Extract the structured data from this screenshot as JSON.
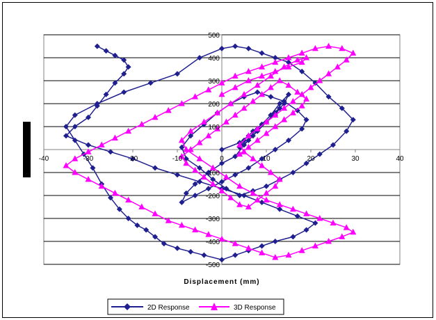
{
  "chart_data": {
    "type": "scatter",
    "xlabel": "Displacement (mm)",
    "ylabel": "",
    "xlim": [
      -40,
      40
    ],
    "ylim": [
      -500,
      500
    ],
    "x_ticks": [
      -40,
      -30,
      -20,
      -10,
      0,
      10,
      20,
      30,
      40
    ],
    "y_ticks": [
      -500,
      -400,
      -300,
      -200,
      -100,
      100,
      200,
      300,
      400,
      500
    ],
    "grid": "horizontal",
    "legend_position": "bottom",
    "series": [
      {
        "name": "2D Response",
        "color": "#1f1f8f",
        "marker": "diamond",
        "x": [
          0,
          4,
          6,
          8,
          10,
          12,
          13,
          11,
          9,
          7,
          5,
          4,
          6,
          8,
          10,
          12,
          14,
          15,
          13,
          11,
          9,
          7,
          5,
          3,
          0,
          -3,
          -6,
          -8,
          -9,
          -6,
          -3,
          0,
          3,
          6,
          9,
          12,
          15,
          18,
          19,
          17,
          14,
          11,
          8,
          5,
          2,
          -1,
          -4,
          -7,
          -9,
          -8,
          -5,
          -2,
          1,
          4,
          7,
          10,
          13,
          16,
          19,
          22,
          25,
          28,
          29.5,
          27,
          24,
          21,
          18,
          15,
          12,
          9,
          6,
          3,
          0,
          -5,
          -10,
          -16,
          -22,
          -28,
          -33,
          -35,
          -33,
          -31,
          -29,
          -27,
          -25,
          -23,
          -21,
          -19,
          -17,
          -15,
          -13,
          -10,
          -7,
          -4,
          0,
          3,
          6,
          9,
          12,
          16,
          19,
          21,
          17,
          13,
          9,
          5,
          0,
          -5,
          -10,
          -15,
          -20,
          -25,
          -30,
          -35,
          -33,
          -30,
          -28,
          -26,
          -24,
          -22,
          -21,
          -22,
          -24,
          -26,
          -28
        ],
        "y": [
          0,
          30,
          60,
          90,
          120,
          150,
          180,
          150,
          110,
          80,
          40,
          10,
          40,
          80,
          120,
          160,
          200,
          240,
          200,
          150,
          110,
          60,
          20,
          -30,
          -60,
          -100,
          -150,
          -190,
          -230,
          -200,
          -170,
          -140,
          -110,
          -80,
          -40,
          0,
          40,
          90,
          130,
          170,
          210,
          230,
          250,
          230,
          200,
          160,
          110,
          60,
          10,
          -40,
          -80,
          -130,
          -170,
          -200,
          -180,
          -160,
          -130,
          -100,
          -60,
          -20,
          20,
          80,
          130,
          180,
          230,
          290,
          340,
          380,
          400,
          420,
          440,
          450,
          440,
          400,
          330,
          290,
          250,
          200,
          150,
          100,
          40,
          -20,
          -80,
          -150,
          -210,
          -260,
          -300,
          -330,
          -350,
          -380,
          -410,
          -430,
          -445,
          -460,
          -480,
          -460,
          -440,
          -420,
          -400,
          -380,
          -350,
          -320,
          -290,
          -260,
          -230,
          -200,
          -170,
          -140,
          -110,
          -80,
          -40,
          -10,
          20,
          60,
          100,
          140,
          190,
          240,
          290,
          330,
          360,
          390,
          410,
          430,
          450
        ],
        "note_only_visible_behind_overlap": true
      },
      {
        "name": "3D Response",
        "color": "#ff00ff",
        "marker": "triangle",
        "x": [
          0,
          3,
          6,
          9,
          12,
          15,
          18,
          19,
          17,
          14,
          11,
          8,
          5,
          2,
          -1,
          -4,
          -7,
          -9,
          -8,
          -5,
          -2,
          1,
          4,
          7,
          10,
          13,
          16,
          19,
          22,
          25,
          28,
          29.5,
          27,
          24,
          21,
          18,
          15,
          12,
          9,
          6,
          3,
          0,
          -3,
          -6,
          -9,
          -12,
          -15,
          -18,
          -21,
          -24,
          -27,
          -30,
          -33,
          -35,
          -33,
          -30,
          -27,
          -24,
          -21,
          -18,
          -15,
          -12,
          -9,
          -6,
          -3,
          0,
          3,
          6,
          9,
          12,
          15,
          18,
          21,
          24,
          27,
          29.5,
          28,
          26,
          24,
          22,
          20,
          18,
          16,
          14,
          12,
          10,
          8,
          6,
          4,
          5,
          7,
          9,
          11,
          13,
          12,
          10,
          8,
          6,
          4,
          2,
          0,
          -2,
          -4,
          -6,
          -8,
          -9,
          -7,
          -5,
          -3,
          -1,
          1,
          3,
          5,
          7,
          9,
          11,
          13,
          15,
          17,
          19,
          18,
          16,
          14,
          12,
          10,
          8,
          6,
          4
        ],
        "y": [
          240,
          270,
          300,
          320,
          340,
          360,
          380,
          400,
          390,
          360,
          320,
          280,
          240,
          200,
          160,
          120,
          80,
          40,
          0,
          -40,
          -80,
          -120,
          -160,
          -190,
          -220,
          -240,
          -260,
          -280,
          -300,
          -320,
          -340,
          -360,
          -380,
          -400,
          -420,
          -440,
          -460,
          -470,
          -450,
          -430,
          -410,
          -390,
          -370,
          -350,
          -330,
          -310,
          -280,
          -250,
          -220,
          -190,
          -160,
          -130,
          -100,
          -70,
          -40,
          -10,
          20,
          50,
          80,
          110,
          140,
          170,
          200,
          230,
          260,
          290,
          320,
          340,
          360,
          380,
          400,
          420,
          440,
          450,
          440,
          420,
          390,
          360,
          330,
          300,
          270,
          240,
          210,
          180,
          150,
          120,
          90,
          60,
          20,
          -10,
          -40,
          -70,
          -100,
          -130,
          -160,
          -190,
          -220,
          -250,
          -240,
          -210,
          -180,
          -150,
          -120,
          -90,
          -60,
          -30,
          0,
          30,
          60,
          90,
          120,
          150,
          180,
          210,
          240,
          270,
          300,
          280,
          250,
          220,
          190,
          160,
          130,
          100,
          70,
          40,
          10,
          -20
        ]
      }
    ]
  }
}
